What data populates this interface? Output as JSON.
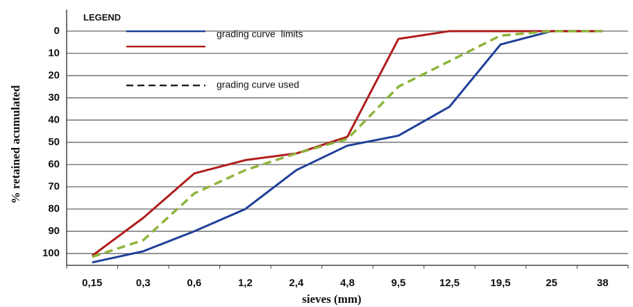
{
  "chart_data": {
    "type": "line",
    "x_label": "sieves (mm)",
    "y_label": "% retained acumulated",
    "legend_title": "LEGEND",
    "categories": [
      "0,15",
      "0,3",
      "0,6",
      "1,2",
      "2,4",
      "4,8",
      "9,5",
      "12,5",
      "19,5",
      "25",
      "38"
    ],
    "series": [
      {
        "name": "grading curve  limits",
        "color": "#1f3f99",
        "dash": false,
        "values": [
          104,
          99,
          90,
          80,
          62.5,
          51.5,
          47,
          34,
          6,
          0,
          0
        ]
      },
      {
        "name": null,
        "color": "#b01c1c",
        "dash": false,
        "values": [
          101,
          84,
          64,
          58,
          55,
          47.5,
          3.5,
          0,
          0,
          0,
          0
        ]
      },
      {
        "name": "grading curve used",
        "color": "#8db43a",
        "dash": true,
        "values": [
          101.5,
          94,
          73,
          62.5,
          55,
          48.5,
          25,
          13.5,
          2,
          0,
          0
        ]
      }
    ],
    "ylim": [
      -9,
      105
    ],
    "y_inverted": true,
    "yticks": [
      0,
      10,
      20,
      30,
      40,
      50,
      60,
      70,
      80,
      90,
      100
    ],
    "grid": true
  }
}
